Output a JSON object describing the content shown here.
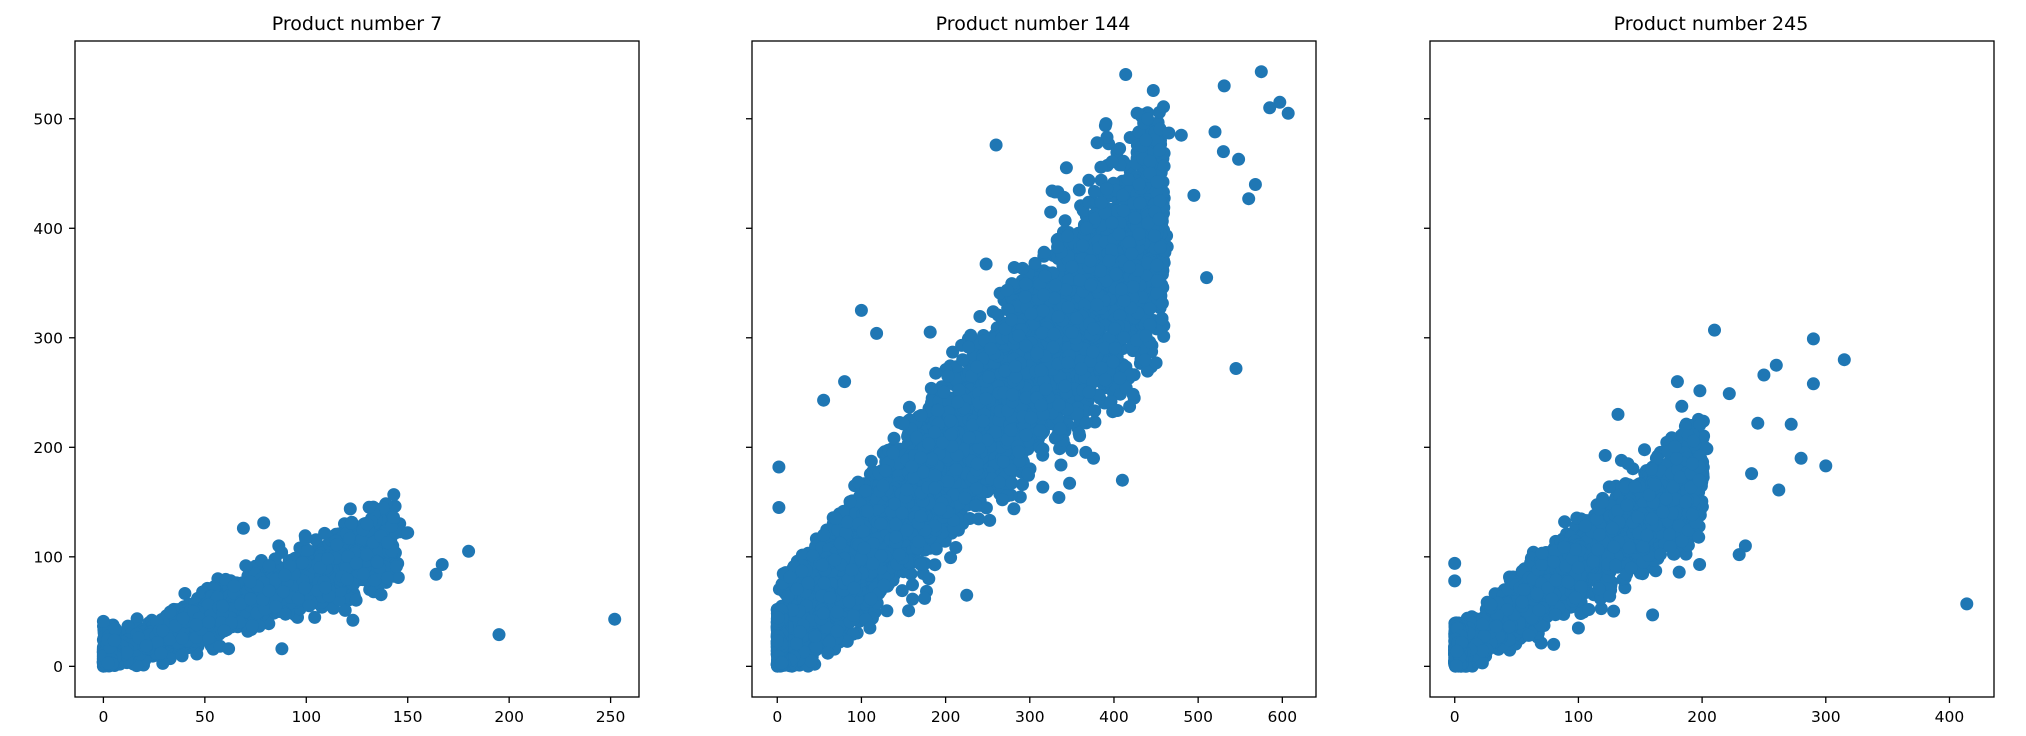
{
  "chart_data": [
    {
      "type": "scatter",
      "title": "Product number 7",
      "xlabel": "",
      "ylabel": "",
      "xlim": [
        -14,
        264
      ],
      "ylim": [
        -28,
        571
      ],
      "xticks": [
        0,
        50,
        100,
        150,
        200,
        250
      ],
      "yticks": [
        0,
        100,
        200,
        300,
        400,
        500
      ],
      "show_yticklabels": true,
      "grid": false,
      "color": "#1f77b4",
      "cluster": {
        "x_range": [
          0,
          142
        ],
        "slope": 0.72,
        "intercept": 8,
        "spread": 17,
        "count": 2600
      },
      "outliers": [
        {
          "x": 252,
          "y": 43
        },
        {
          "x": 195,
          "y": 29
        },
        {
          "x": 180,
          "y": 105
        },
        {
          "x": 167,
          "y": 93
        },
        {
          "x": 164,
          "y": 84
        },
        {
          "x": 150,
          "y": 122
        },
        {
          "x": 143,
          "y": 136
        },
        {
          "x": 140,
          "y": 113
        },
        {
          "x": 135,
          "y": 95
        },
        {
          "x": 130,
          "y": 130
        },
        {
          "x": 123,
          "y": 42
        },
        {
          "x": 88,
          "y": 16
        },
        {
          "x": 79,
          "y": 131
        },
        {
          "x": 69,
          "y": 126
        },
        {
          "x": 0,
          "y": 41
        }
      ]
    },
    {
      "type": "scatter",
      "title": "Product number 144",
      "xlabel": "",
      "ylabel": "",
      "xlim": [
        -30,
        640
      ],
      "ylim": [
        -28,
        571
      ],
      "xticks": [
        0,
        100,
        200,
        300,
        400,
        500,
        600
      ],
      "yticks": [
        0,
        100,
        200,
        300,
        400,
        500
      ],
      "show_yticklabels": false,
      "grid": false,
      "color": "#1f77b4",
      "cluster": {
        "x_range": [
          0,
          460
        ],
        "slope": 0.83,
        "intercept": 22,
        "spread": 52,
        "count": 7000
      },
      "outliers": [
        {
          "x": 607,
          "y": 505
        },
        {
          "x": 597,
          "y": 515
        },
        {
          "x": 585,
          "y": 510
        },
        {
          "x": 575,
          "y": 543
        },
        {
          "x": 568,
          "y": 440
        },
        {
          "x": 560,
          "y": 427
        },
        {
          "x": 548,
          "y": 463
        },
        {
          "x": 545,
          "y": 272
        },
        {
          "x": 531,
          "y": 530
        },
        {
          "x": 530,
          "y": 470
        },
        {
          "x": 520,
          "y": 488
        },
        {
          "x": 510,
          "y": 355
        },
        {
          "x": 495,
          "y": 430
        },
        {
          "x": 480,
          "y": 485
        },
        {
          "x": 440,
          "y": 500
        },
        {
          "x": 410,
          "y": 170
        },
        {
          "x": 380,
          "y": 478
        },
        {
          "x": 260,
          "y": 476
        },
        {
          "x": 100,
          "y": 325
        },
        {
          "x": 118,
          "y": 304
        },
        {
          "x": 80,
          "y": 260
        },
        {
          "x": 55,
          "y": 243
        },
        {
          "x": 2,
          "y": 182
        },
        {
          "x": 2,
          "y": 145
        },
        {
          "x": 225,
          "y": 65
        },
        {
          "x": 175,
          "y": 62
        },
        {
          "x": 110,
          "y": 35
        },
        {
          "x": 62,
          "y": 22
        },
        {
          "x": 60,
          "y": 12
        },
        {
          "x": 180,
          "y": 80
        }
      ]
    },
    {
      "type": "scatter",
      "title": "Product number 245",
      "xlabel": "",
      "ylabel": "",
      "xlim": [
        -20,
        436
      ],
      "ylim": [
        -28,
        571
      ],
      "xticks": [
        0,
        100,
        200,
        300,
        400
      ],
      "yticks": [
        0,
        100,
        200,
        300,
        400,
        500
      ],
      "show_yticklabels": false,
      "grid": false,
      "color": "#1f77b4",
      "cluster": {
        "x_range": [
          0,
          200
        ],
        "slope": 0.85,
        "intercept": 10,
        "spread": 24,
        "count": 3400
      },
      "outliers": [
        {
          "x": 414,
          "y": 57
        },
        {
          "x": 315,
          "y": 280
        },
        {
          "x": 300,
          "y": 183
        },
        {
          "x": 290,
          "y": 299
        },
        {
          "x": 290,
          "y": 258
        },
        {
          "x": 272,
          "y": 221
        },
        {
          "x": 262,
          "y": 161
        },
        {
          "x": 260,
          "y": 275
        },
        {
          "x": 250,
          "y": 266
        },
        {
          "x": 245,
          "y": 222
        },
        {
          "x": 240,
          "y": 176
        },
        {
          "x": 235,
          "y": 110
        },
        {
          "x": 230,
          "y": 102
        },
        {
          "x": 222,
          "y": 249
        },
        {
          "x": 210,
          "y": 307
        },
        {
          "x": 198,
          "y": 93
        },
        {
          "x": 180,
          "y": 260
        },
        {
          "x": 160,
          "y": 47
        },
        {
          "x": 132,
          "y": 230
        },
        {
          "x": 0,
          "y": 94
        },
        {
          "x": 0,
          "y": 78
        },
        {
          "x": 80,
          "y": 20
        },
        {
          "x": 100,
          "y": 35
        },
        {
          "x": 280,
          "y": 190
        }
      ]
    }
  ]
}
